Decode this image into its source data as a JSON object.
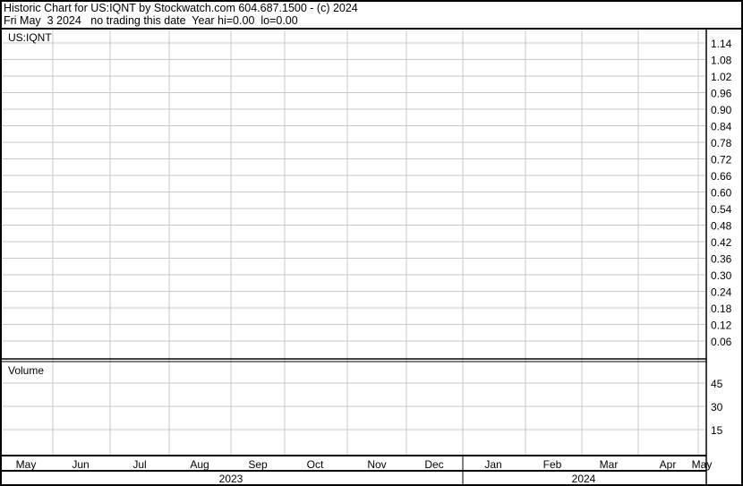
{
  "header": {
    "line1": "Historic Chart for US:IQNT by Stockwatch.com 604.687.1500 - (c) 2024",
    "line2": "Fri May  3 2024   no trading this date  Year hi=0.00  lo=0.00"
  },
  "chart_data": [
    {
      "type": "line",
      "title": "US:IQNT",
      "yticks": [
        "1.14",
        "1.08",
        "1.02",
        "0.96",
        "0.90",
        "0.84",
        "0.78",
        "0.72",
        "0.66",
        "0.60",
        "0.54",
        "0.48",
        "0.42",
        "0.36",
        "0.30",
        "0.24",
        "0.18",
        "0.12",
        "0.06"
      ],
      "series": [],
      "grid": true
    },
    {
      "type": "bar",
      "title": "Volume",
      "yticks": [
        "45",
        "30",
        "15"
      ],
      "values": [],
      "grid": true
    }
  ],
  "xaxis": {
    "months": [
      "May",
      "Jun",
      "Jul",
      "Aug",
      "Sep",
      "Oct",
      "Nov",
      "Dec",
      "Jan",
      "Feb",
      "Mar",
      "Apr",
      "May"
    ],
    "years": [
      "2023",
      "2024"
    ]
  },
  "colors": {
    "grid": "#c8c8c8",
    "border": "#000000"
  }
}
